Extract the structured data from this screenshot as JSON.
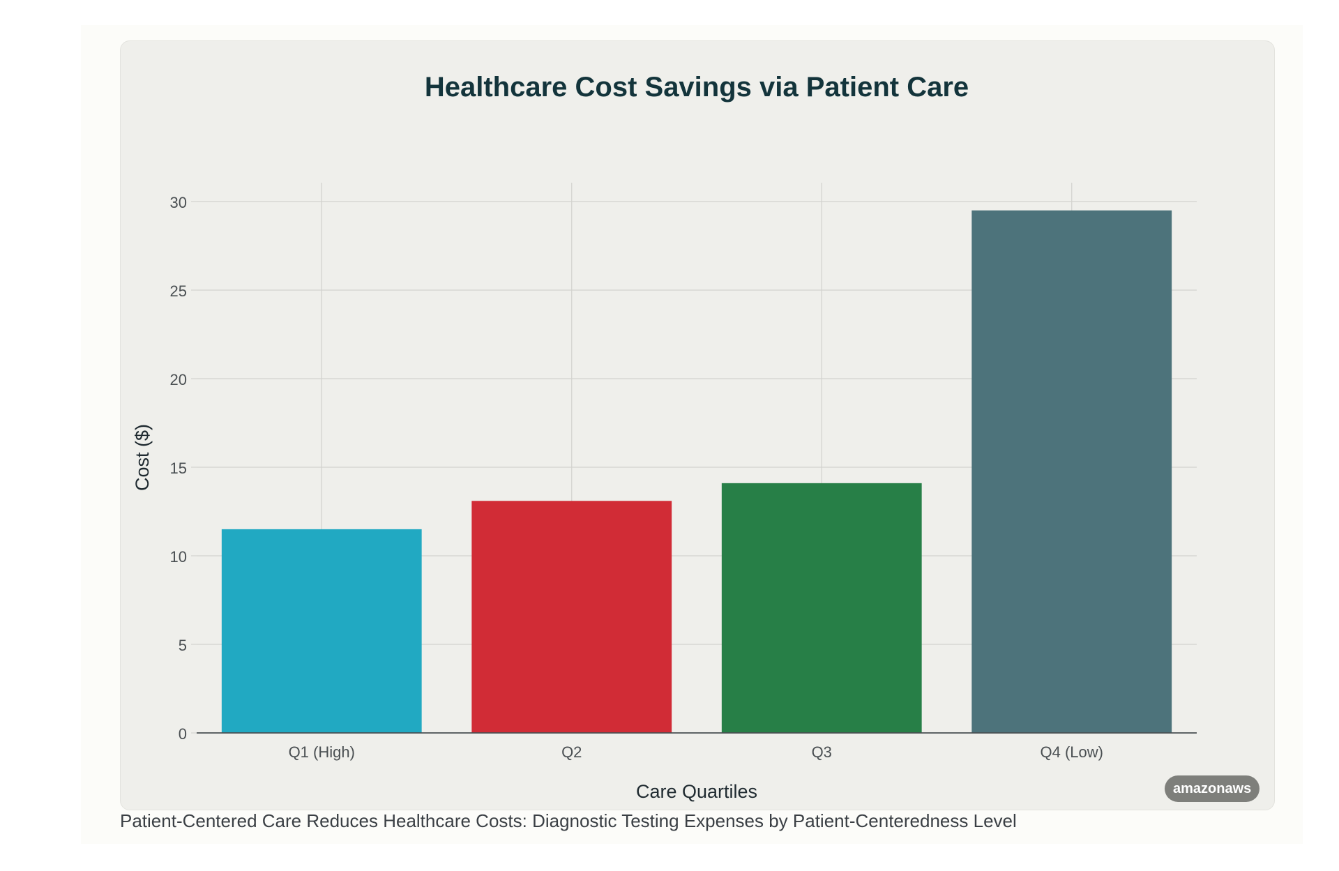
{
  "badge": "amazonaws",
  "caption": "Patient-Centered Care Reduces Healthcare Costs: Diagnostic Testing Expenses by Patient-Centeredness Level",
  "colors": {
    "card_background": "#efefeb",
    "grid": "#d2d2ce",
    "axis": "#4a4f52",
    "title": "#13343b"
  },
  "chart_data": {
    "type": "bar",
    "title": "Healthcare Cost Savings via Patient Care",
    "xlabel": "Care Quartiles",
    "ylabel": "Cost ($)",
    "categories": [
      "Q1 (High)",
      "Q2",
      "Q3",
      "Q4 (Low)"
    ],
    "values": [
      11.5,
      13.1,
      14.1,
      29.5
    ],
    "bar_colors": [
      "#21a9c2",
      "#d12c36",
      "#277f47",
      "#4d737b"
    ],
    "ylim": [
      0,
      31
    ],
    "yticks": [
      0,
      5,
      10,
      15,
      20,
      25,
      30
    ],
    "grid": true,
    "legend": "none"
  }
}
